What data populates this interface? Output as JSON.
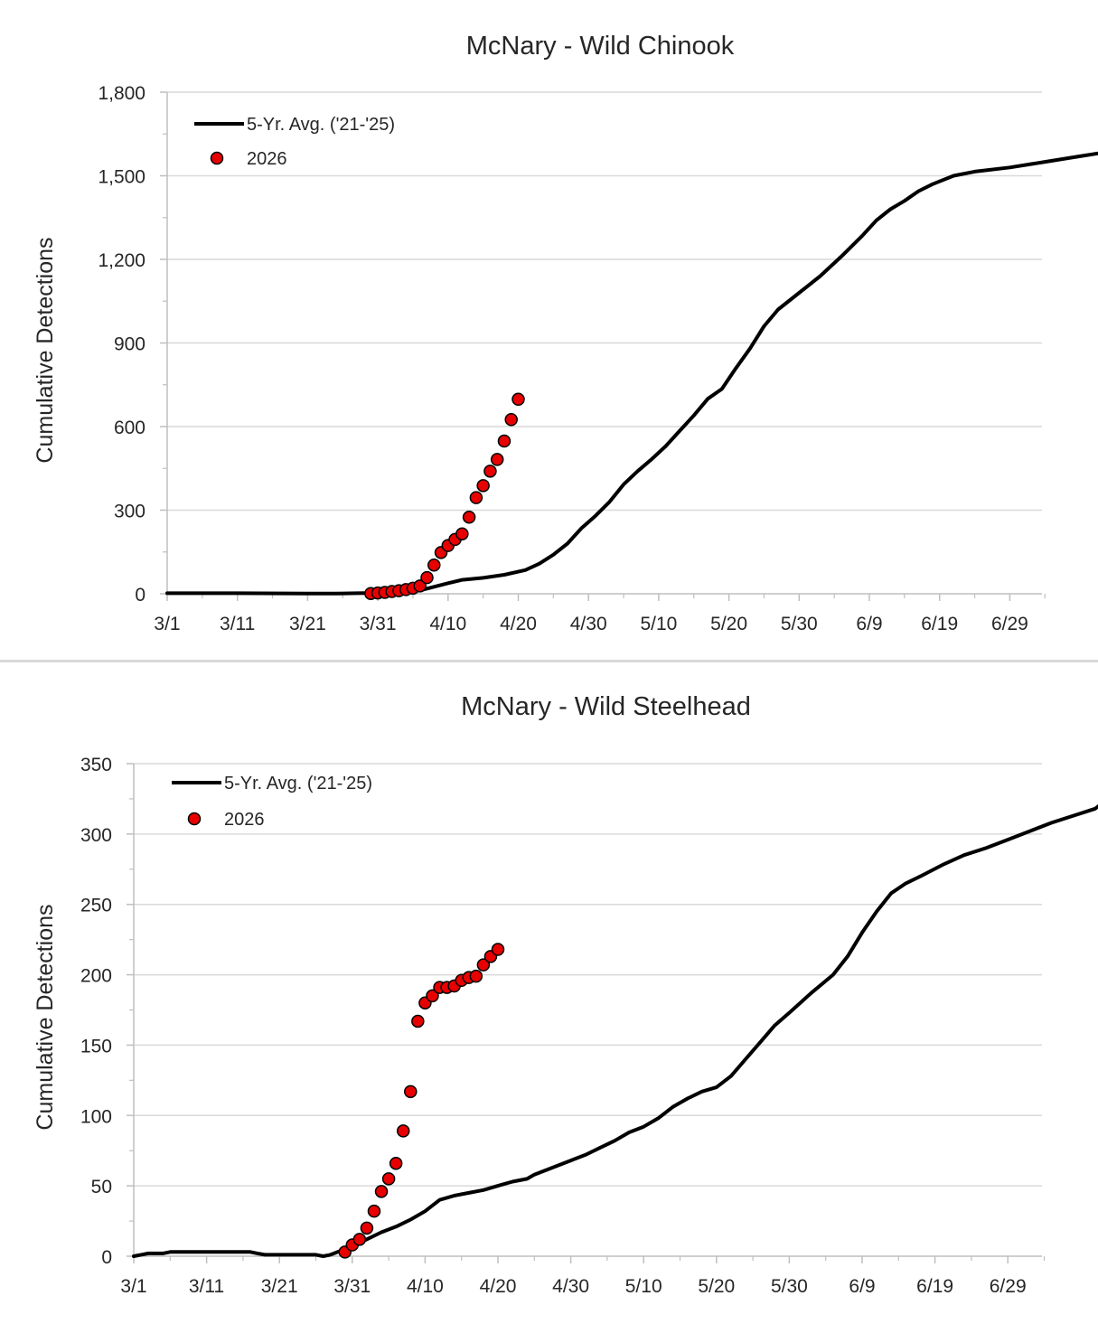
{
  "chart_data": [
    {
      "type": "line",
      "title": "McNary - Wild Chinook",
      "ylabel": "Cumulative Detections",
      "xlabel": "",
      "x_tick_labels": [
        "3/1",
        "3/11",
        "3/21",
        "3/31",
        "4/10",
        "4/20",
        "4/30",
        "5/10",
        "5/20",
        "5/30",
        "6/9",
        "6/19",
        "6/29"
      ],
      "y_tick_labels": [
        "0",
        "300",
        "600",
        "900",
        "1,200",
        "1,500",
        "1,800"
      ],
      "ylim": [
        0,
        1800
      ],
      "gridlines": "horizontal",
      "legend_position": "top-left",
      "series": [
        {
          "name": "5-Yr. Avg. ('21-'25)",
          "style": "line",
          "color": "#000000",
          "points": [
            [
              0,
              2
            ],
            [
              10,
              2
            ],
            [
              20,
              1
            ],
            [
              24,
              1
            ],
            [
              27,
              2
            ],
            [
              30,
              3
            ],
            [
              33,
              5
            ],
            [
              36,
              12
            ],
            [
              38,
              25
            ],
            [
              40,
              38
            ],
            [
              42,
              50
            ],
            [
              45,
              57
            ],
            [
              48,
              68
            ],
            [
              51,
              85
            ],
            [
              53,
              108
            ],
            [
              55,
              140
            ],
            [
              57,
              180
            ],
            [
              59,
              235
            ],
            [
              61,
              280
            ],
            [
              63,
              330
            ],
            [
              65,
              392
            ],
            [
              67,
              440
            ],
            [
              69,
              483
            ],
            [
              71,
              530
            ],
            [
              73,
              585
            ],
            [
              75,
              640
            ],
            [
              77,
              700
            ],
            [
              79,
              735
            ],
            [
              81,
              810
            ],
            [
              83,
              880
            ],
            [
              85,
              960
            ],
            [
              87,
              1020
            ],
            [
              90,
              1080
            ],
            [
              93,
              1140
            ],
            [
              96,
              1210
            ],
            [
              99,
              1285
            ],
            [
              101,
              1340
            ],
            [
              103,
              1380
            ],
            [
              105,
              1410
            ],
            [
              107,
              1445
            ],
            [
              109,
              1470
            ],
            [
              112,
              1500
            ],
            [
              115,
              1515
            ],
            [
              120,
              1530
            ],
            [
              125,
              1550
            ],
            [
              130,
              1570
            ],
            [
              135,
              1590
            ],
            [
              140,
              1603
            ],
            [
              145,
              1613
            ],
            [
              150,
              1620
            ],
            [
              155,
              1623
            ],
            [
              160,
              1630
            ]
          ]
        },
        {
          "name": "2026",
          "style": "marker",
          "color": "#e80000",
          "points": [
            [
              29,
              1
            ],
            [
              30,
              3
            ],
            [
              31,
              5
            ],
            [
              32,
              8
            ],
            [
              33,
              11
            ],
            [
              34,
              15
            ],
            [
              35,
              20
            ],
            [
              36,
              28
            ],
            [
              37,
              58
            ],
            [
              38,
              103
            ],
            [
              39,
              148
            ],
            [
              40,
              173
            ],
            [
              41,
              195
            ],
            [
              42,
              215
            ],
            [
              43,
              275
            ],
            [
              44,
              345
            ],
            [
              45,
              388
            ],
            [
              46,
              440
            ],
            [
              47,
              482
            ],
            [
              48,
              548
            ],
            [
              49,
              625
            ],
            [
              50,
              698
            ]
          ]
        }
      ]
    },
    {
      "type": "line",
      "title": "McNary - Wild Steelhead",
      "ylabel": "Cumulative Detections",
      "xlabel": "",
      "x_tick_labels": [
        "3/1",
        "3/11",
        "3/21",
        "3/31",
        "4/10",
        "4/20",
        "4/30",
        "5/10",
        "5/20",
        "5/30",
        "6/9",
        "6/19",
        "6/29"
      ],
      "y_tick_labels": [
        "0",
        "50",
        "100",
        "150",
        "200",
        "250",
        "300",
        "350"
      ],
      "ylim": [
        0,
        350
      ],
      "gridlines": "horizontal",
      "legend_position": "top-left",
      "series": [
        {
          "name": "5-Yr. Avg. ('21-'25)",
          "style": "line",
          "color": "#000000",
          "points": [
            [
              0,
              0
            ],
            [
              1,
              1
            ],
            [
              2,
              2
            ],
            [
              4,
              2
            ],
            [
              5,
              3
            ],
            [
              10,
              3
            ],
            [
              15,
              3
            ],
            [
              16,
              3
            ],
            [
              17,
              2
            ],
            [
              18,
              1
            ],
            [
              20,
              1
            ],
            [
              23,
              1
            ],
            [
              25,
              1
            ],
            [
              26,
              0
            ],
            [
              27,
              1
            ],
            [
              28,
              3
            ],
            [
              30,
              7
            ],
            [
              32,
              12
            ],
            [
              34,
              17
            ],
            [
              36,
              21
            ],
            [
              38,
              26
            ],
            [
              40,
              32
            ],
            [
              42,
              40
            ],
            [
              44,
              43
            ],
            [
              46,
              45
            ],
            [
              48,
              47
            ],
            [
              50,
              50
            ],
            [
              52,
              53
            ],
            [
              54,
              55
            ],
            [
              55,
              58
            ],
            [
              57,
              62
            ],
            [
              60,
              68
            ],
            [
              62,
              72
            ],
            [
              64,
              77
            ],
            [
              66,
              82
            ],
            [
              68,
              88
            ],
            [
              70,
              92
            ],
            [
              72,
              98
            ],
            [
              74,
              106
            ],
            [
              76,
              112
            ],
            [
              78,
              117
            ],
            [
              80,
              120
            ],
            [
              82,
              128
            ],
            [
              84,
              140
            ],
            [
              86,
              152
            ],
            [
              88,
              164
            ],
            [
              90,
              173
            ],
            [
              93,
              187
            ],
            [
              96,
              200
            ],
            [
              98,
              213
            ],
            [
              100,
              230
            ],
            [
              102,
              245
            ],
            [
              104,
              258
            ],
            [
              106,
              265
            ],
            [
              108,
              270
            ],
            [
              111,
              278
            ],
            [
              114,
              285
            ],
            [
              117,
              290
            ],
            [
              120,
              296
            ],
            [
              123,
              302
            ],
            [
              126,
              308
            ],
            [
              129,
              313
            ],
            [
              132,
              318
            ],
            [
              134,
              326
            ],
            [
              136,
              330
            ],
            [
              139,
              333
            ],
            [
              142,
              336
            ],
            [
              145,
              337
            ],
            [
              150,
              338
            ],
            [
              155,
              339
            ],
            [
              160,
              339
            ]
          ]
        },
        {
          "name": "2026",
          "style": "marker",
          "color": "#e80000",
          "points": [
            [
              29,
              3
            ],
            [
              30,
              8
            ],
            [
              31,
              12
            ],
            [
              32,
              20
            ],
            [
              33,
              32
            ],
            [
              34,
              46
            ],
            [
              35,
              55
            ],
            [
              36,
              66
            ],
            [
              37,
              89
            ],
            [
              38,
              117
            ],
            [
              39,
              167
            ],
            [
              40,
              180
            ],
            [
              41,
              185
            ],
            [
              42,
              191
            ],
            [
              43,
              191
            ],
            [
              44,
              192
            ],
            [
              45,
              196
            ],
            [
              46,
              198
            ],
            [
              47,
              199
            ],
            [
              48,
              207
            ],
            [
              49,
              213
            ],
            [
              50,
              218
            ]
          ]
        }
      ]
    }
  ]
}
